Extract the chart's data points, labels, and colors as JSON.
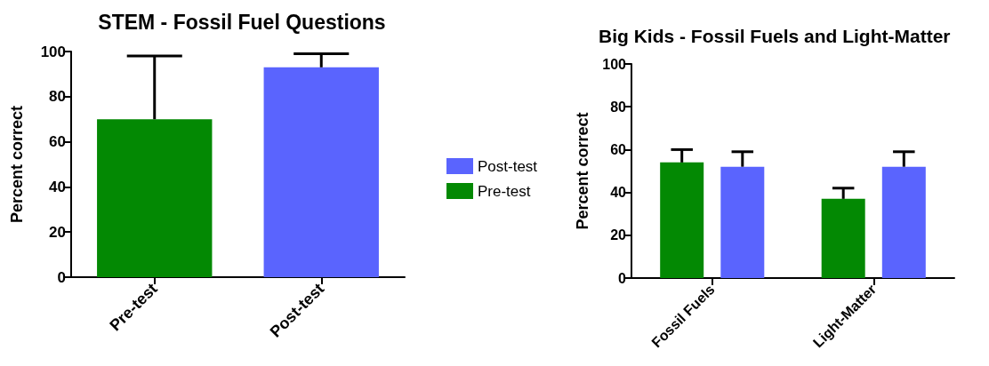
{
  "chart_data": [
    {
      "type": "bar",
      "title": "STEM - Fossil Fuel Questions",
      "ylabel": "Percent correct",
      "categories": [
        "Pre-test",
        "Post-test"
      ],
      "values": [
        70,
        93
      ],
      "colors": [
        "#038903",
        "#5a64fe"
      ],
      "errors": [
        [
          70,
          98
        ],
        [
          93,
          99
        ]
      ],
      "ylim": [
        0,
        100
      ],
      "yticks": [
        0,
        20,
        40,
        60,
        80,
        100
      ],
      "grid": false,
      "legend": false
    },
    {
      "type": "bar",
      "title": "Big Kids - Fossil Fuels and Light-Matter",
      "ylabel": "Percent correct",
      "categories": [
        "Fossil Fuels",
        "Light-Matter"
      ],
      "series": [
        {
          "name": "Pre-test",
          "color": "#038903",
          "values": [
            54,
            37
          ],
          "errors": [
            [
              54,
              60
            ],
            [
              37,
              42
            ]
          ]
        },
        {
          "name": "Post-test",
          "color": "#5a64fe",
          "values": [
            52,
            52
          ],
          "errors": [
            [
              52,
              59
            ],
            [
              52,
              59
            ]
          ]
        }
      ],
      "ylim": [
        0,
        100
      ],
      "yticks": [
        0,
        20,
        40,
        60,
        80,
        100
      ],
      "grid": false,
      "legend": "left"
    }
  ]
}
